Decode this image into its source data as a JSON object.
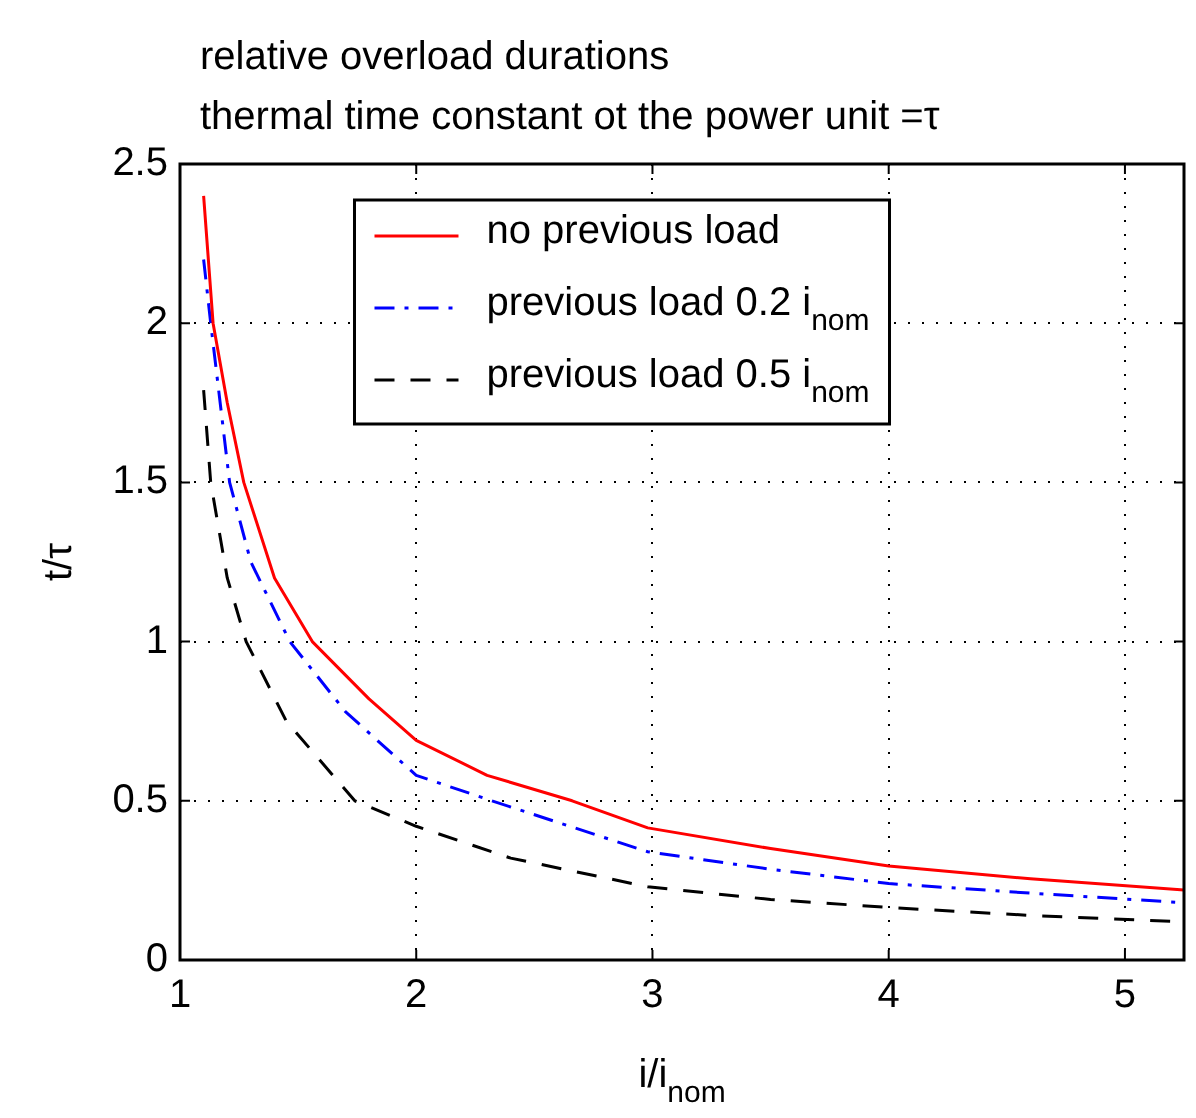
{
  "chart_data": {
    "type": "line",
    "title": "relative overload durations",
    "subtitle": "thermal time constant ot the power unit =τ",
    "xlabel": "i/i$_{nom}$",
    "ylabel": "t/τ",
    "xlim": [
      1,
      5.25
    ],
    "xticks": [
      1,
      2,
      3,
      4,
      5
    ],
    "ylim": [
      0,
      2.5
    ],
    "yticks": [
      0,
      0.5,
      1,
      1.5,
      2,
      2.5
    ],
    "grid": true,
    "legend": "top",
    "marker": "none",
    "series": [
      {
        "name": "no previous load",
        "color": "#ff0000",
        "line_style": "solid",
        "x": [
          1.1,
          1.14,
          1.2,
          1.27,
          1.4,
          1.56,
          1.8,
          2,
          2.3,
          2.66,
          2.98,
          3.5,
          4,
          4.6,
          5.25
        ],
        "values": [
          2.4,
          2,
          1.75,
          1.5,
          1.2,
          1,
          0.82,
          0.69,
          0.58,
          0.5,
          0.415,
          0.35,
          0.295,
          0.255,
          0.22
        ]
      },
      {
        "name": "previous load 0.2 i$_{nom}$",
        "color": "#0000ff",
        "line_style": "dashdot",
        "x": [
          1.1,
          1.13,
          1.21,
          1.3,
          1.465,
          1.7,
          2,
          2.32,
          2.98,
          3.5,
          4,
          4.6,
          5.25
        ],
        "values": [
          2.2,
          2,
          1.5,
          1.25,
          1,
          0.78,
          0.58,
          0.5,
          0.34,
          0.285,
          0.24,
          0.21,
          0.18
        ]
      },
      {
        "name": "previous load 0.5 i$_{nom}$",
        "color": "#000000",
        "line_style": "dashed",
        "x": [
          1.1,
          1.13,
          1.2,
          1.28,
          1.45,
          1.74,
          2,
          2.4,
          2.98,
          3.5,
          4,
          4.6,
          5.25
        ],
        "values": [
          1.79,
          1.5,
          1.2,
          1,
          0.75,
          0.5,
          0.42,
          0.32,
          0.23,
          0.19,
          0.165,
          0.14,
          0.12
        ]
      }
    ]
  }
}
